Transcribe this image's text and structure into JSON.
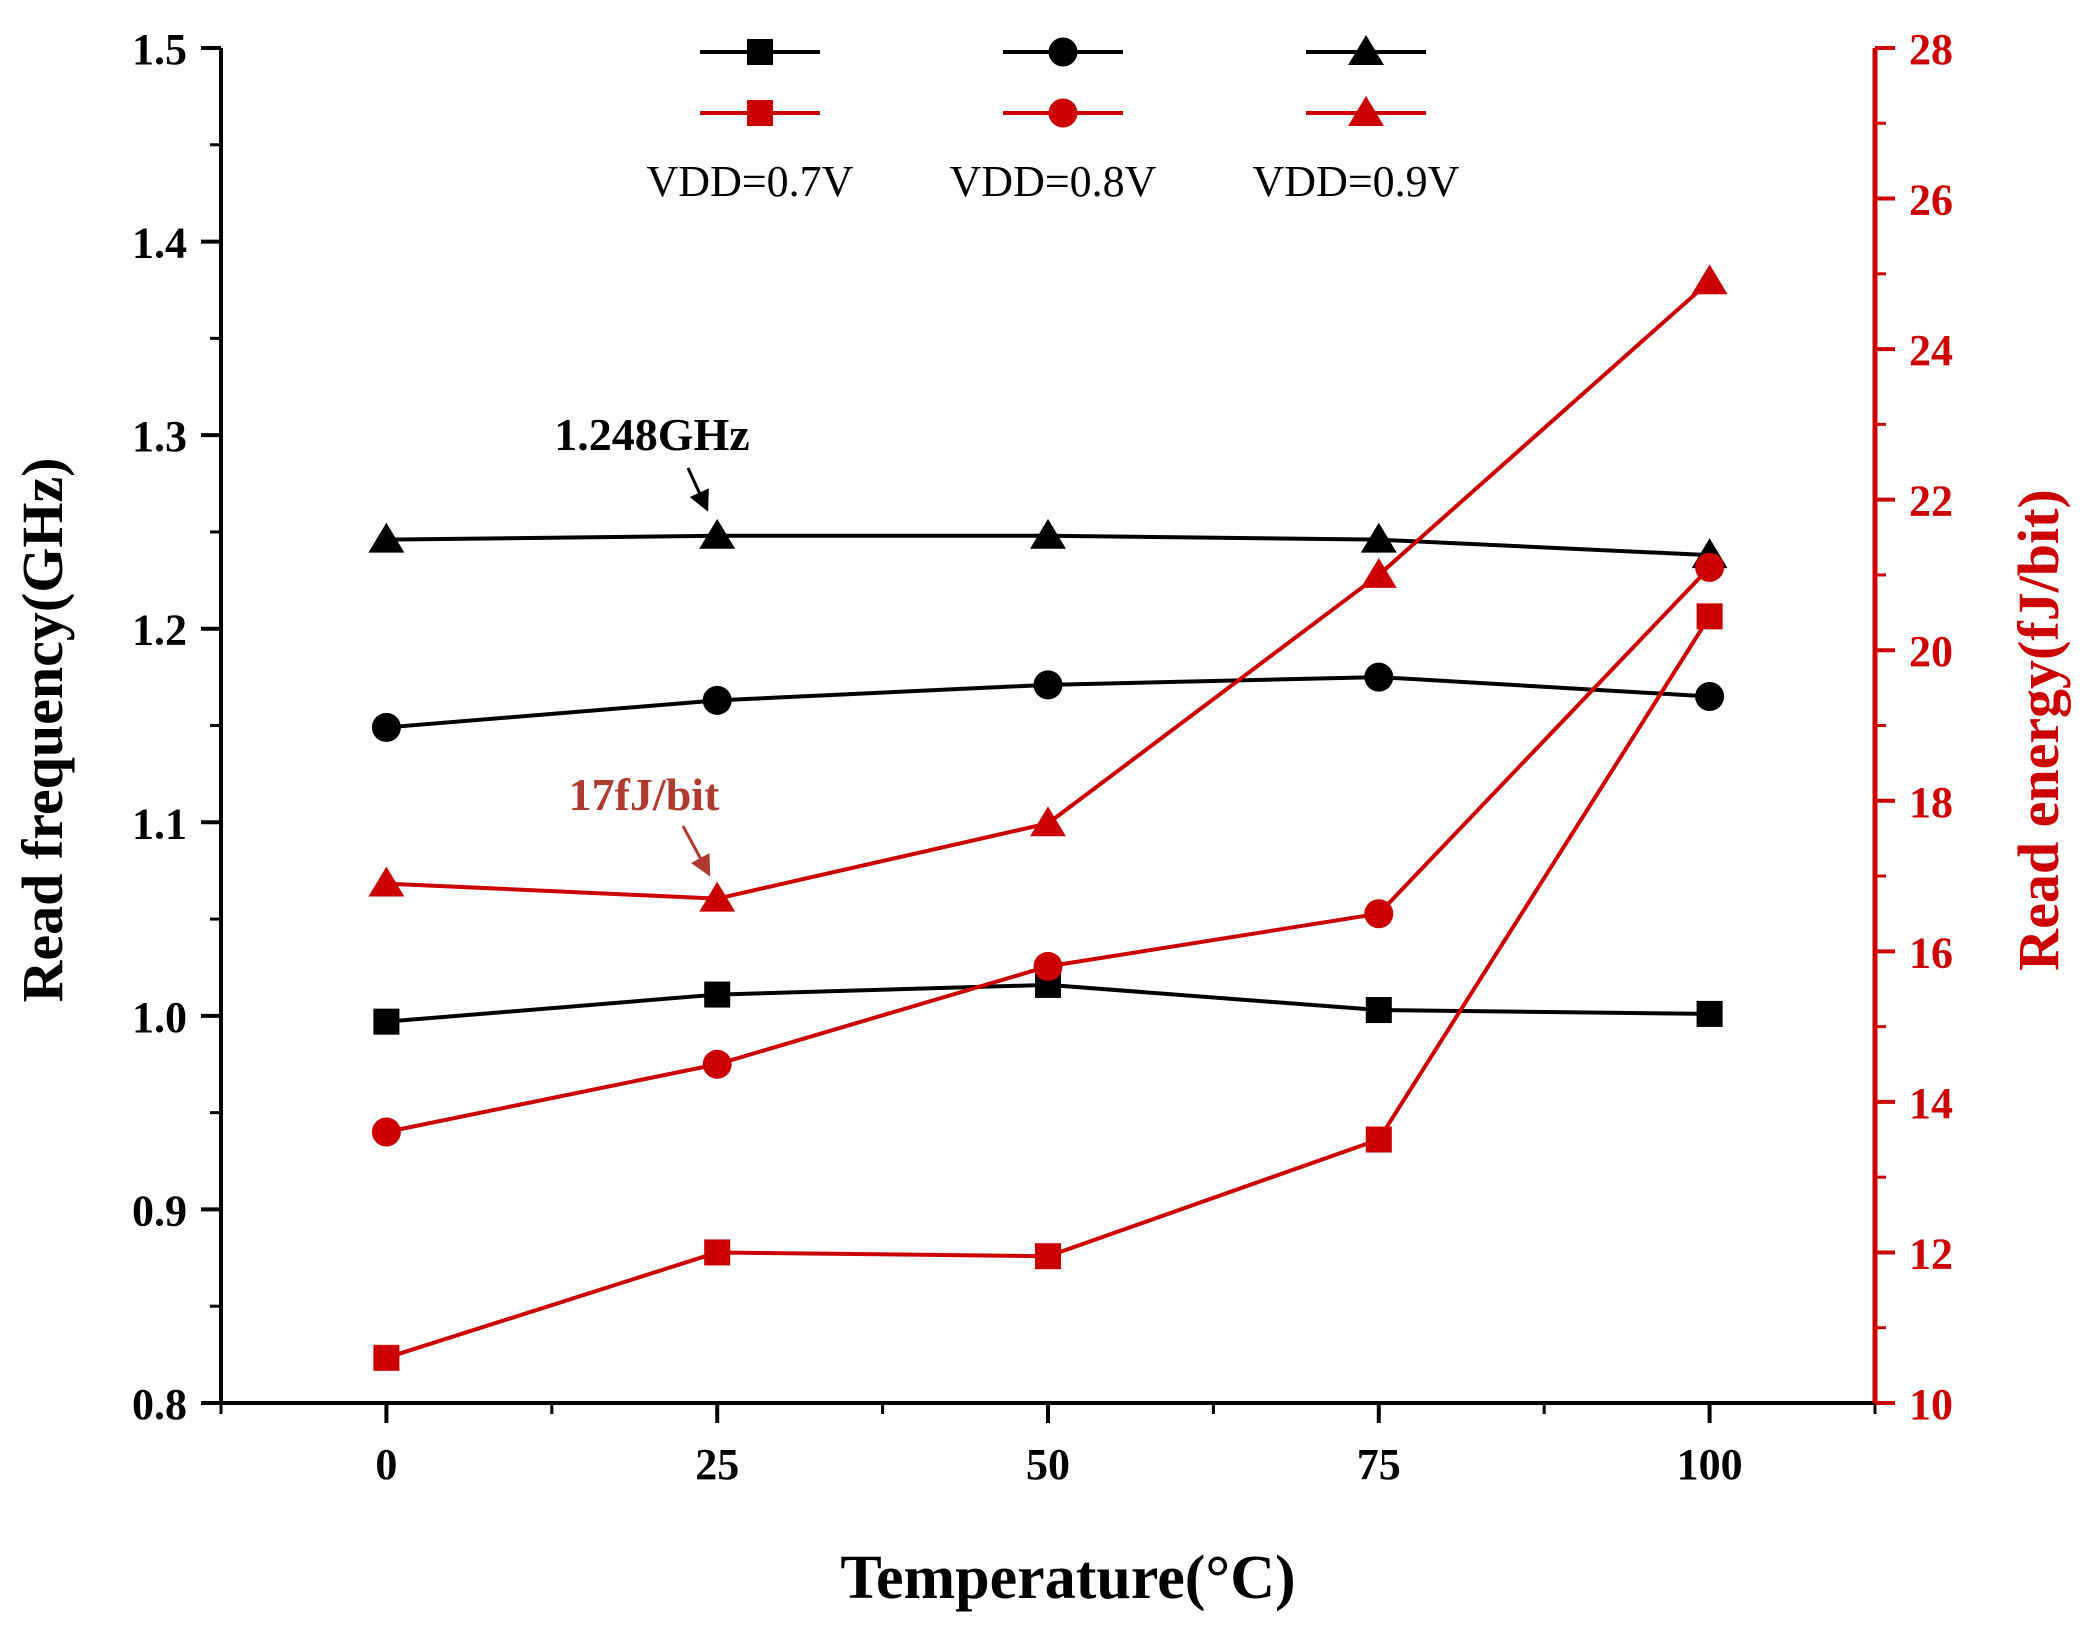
{
  "chart_data": {
    "type": "line",
    "dual_axis": true,
    "x": [
      0,
      25,
      50,
      75,
      100
    ],
    "xlabel": "Temperature(°C)",
    "xlim": [
      -12.5,
      112.5
    ],
    "xticks": [
      "0",
      "25",
      "50",
      "75",
      "100"
    ],
    "left_axis": {
      "label": "Read frequency(GHz)",
      "ylim": [
        0.8,
        1.5
      ],
      "ticks": [
        "0.8",
        "0.9",
        "1.0",
        "1.1",
        "1.2",
        "1.3",
        "1.4",
        "1.5"
      ],
      "color": "#000000"
    },
    "right_axis": {
      "label": "Read energy(fJ/bit)",
      "ylim": [
        10,
        28
      ],
      "ticks": [
        "10",
        "12",
        "14",
        "16",
        "18",
        "20",
        "22",
        "24",
        "26",
        "28"
      ],
      "color": "#cc0000"
    },
    "series": [
      {
        "name": "Read frequency VDD=0.7V",
        "axis": "left",
        "marker": "square",
        "color": "#000000",
        "values": [
          0.997,
          1.011,
          1.016,
          1.003,
          1.001
        ]
      },
      {
        "name": "Read frequency VDD=0.8V",
        "axis": "left",
        "marker": "circle",
        "color": "#000000",
        "values": [
          1.149,
          1.163,
          1.171,
          1.175,
          1.165
        ]
      },
      {
        "name": "Read frequency VDD=0.9V",
        "axis": "left",
        "marker": "triangle",
        "color": "#000000",
        "values": [
          1.246,
          1.248,
          1.248,
          1.246,
          1.238
        ]
      },
      {
        "name": "Read energy VDD=0.7V",
        "axis": "right",
        "marker": "square",
        "color": "#cc0000",
        "values": [
          10.6,
          12.0,
          11.95,
          13.5,
          20.45
        ]
      },
      {
        "name": "Read energy VDD=0.8V",
        "axis": "right",
        "marker": "circle",
        "color": "#cc0000",
        "values": [
          13.6,
          14.5,
          15.8,
          16.5,
          21.1
        ]
      },
      {
        "name": "Read energy VDD=0.9V",
        "axis": "right",
        "marker": "triangle",
        "color": "#cc0000",
        "values": [
          16.9,
          16.7,
          17.7,
          21.0,
          24.9
        ]
      }
    ],
    "legend": {
      "placement": "top-center",
      "labels": [
        "VDD=0.7V",
        "VDD=0.8V",
        "VDD=0.9V"
      ]
    },
    "annotations": [
      {
        "text": "1.248GHz",
        "axis": "left",
        "target_x": 25,
        "target_y": 1.248,
        "color": "#000000"
      },
      {
        "text": "17fJ/bit",
        "axis": "right",
        "target_x": 25,
        "target_y": 16.7,
        "color": "#b03a2e"
      }
    ]
  }
}
